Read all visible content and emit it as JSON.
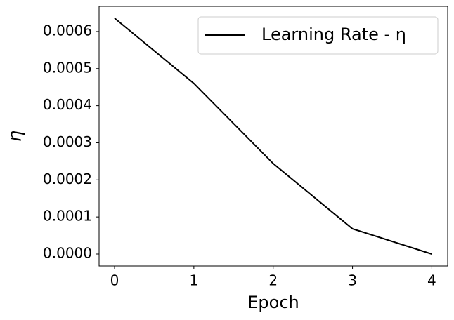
{
  "chart_data": {
    "type": "line",
    "xlabel": "Epoch",
    "ylabel": "η",
    "x": [
      0,
      1,
      2,
      3,
      4
    ],
    "series": [
      {
        "name": "Learning Rate - η",
        "color": "#000000",
        "values": [
          0.000636,
          0.00046,
          0.000244,
          6.8e-05,
          0.0
        ]
      }
    ],
    "xlim": [
      -0.195,
      4.2
    ],
    "ylim": [
      -3.22e-05,
      0.000668
    ],
    "xticks": [
      0,
      1,
      2,
      3,
      4
    ],
    "yticks": [
      {
        "value": 0,
        "label": "0.0000"
      },
      {
        "value": 0.0001,
        "label": "0.0001"
      },
      {
        "value": 0.0002,
        "label": "0.0002"
      },
      {
        "value": 0.0003,
        "label": "0.0003"
      },
      {
        "value": 0.0004,
        "label": "0.0004"
      },
      {
        "value": 0.0005,
        "label": "0.0005"
      },
      {
        "value": 0.0006,
        "label": "0.0006"
      }
    ],
    "legend": "upper right",
    "grid": false
  }
}
